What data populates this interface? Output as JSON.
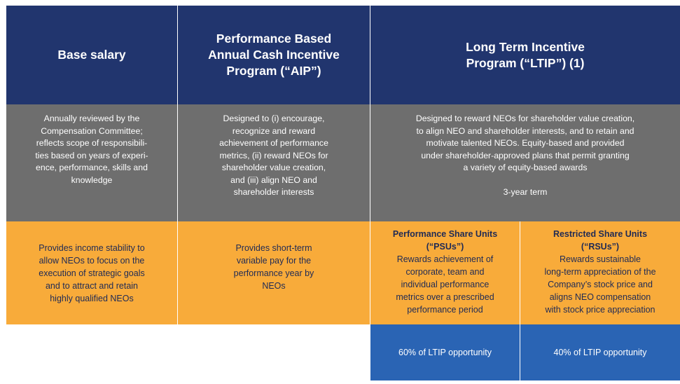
{
  "headers": {
    "base_salary": "Base salary",
    "aip": "Performance Based\nAnnual Cash Incentive\nProgram (“AIP”)",
    "ltip": "Long Term Incentive\nProgram (“LTIP”) (1)"
  },
  "descriptions": {
    "base_salary": "Annually reviewed by the\nCompensation Committee;\nreflects scope of responsibili-\nties based on years of experi-\nence, performance, skills and\nknowledge",
    "aip": "Designed to (i) encourage,\nrecognize and reward\nachievement of performance\nmetrics, (ii) reward NEOs for\nshareholder value creation,\nand (iii) align NEO and\nshareholder interests",
    "ltip": "Designed to reward NEOs for shareholder value creation,\nto align NEO and shareholder interests, and to retain and\nmotivate talented NEOs. Equity-based and provided\nunder shareholder-approved plans that permit granting\na variety of equity-based awards",
    "ltip_term": "3-year term"
  },
  "purposes": {
    "base_salary": "Provides income stability to\nallow NEOs to focus on the\nexecution of strategic goals\nand to attract and retain\nhighly qualified NEOs",
    "aip": "Provides short-term\nvariable pay for the\nperformance year by\nNEOs",
    "psu_title": "Performance Share Units\n(“PSUs”)",
    "psu_text": "Rewards achievement of\ncorporate, team and\nindividual performance\nmetrics over a prescribed\nperformance period",
    "rsu_title": "Restricted Share Units\n(“RSUs”)",
    "rsu_text": "Rewards sustainable\nlong-term appreciation of the\nCompany’s stock price and\naligns NEO compensation\nwith stock price appreciation"
  },
  "weights": {
    "psu": "60% of LTIP opportunity",
    "rsu": "40% of LTIP opportunity"
  },
  "colors": {
    "header": "#21356e",
    "description": "#6e6e6e",
    "purpose": "#f8ab3a",
    "weight": "#2a64b4"
  }
}
